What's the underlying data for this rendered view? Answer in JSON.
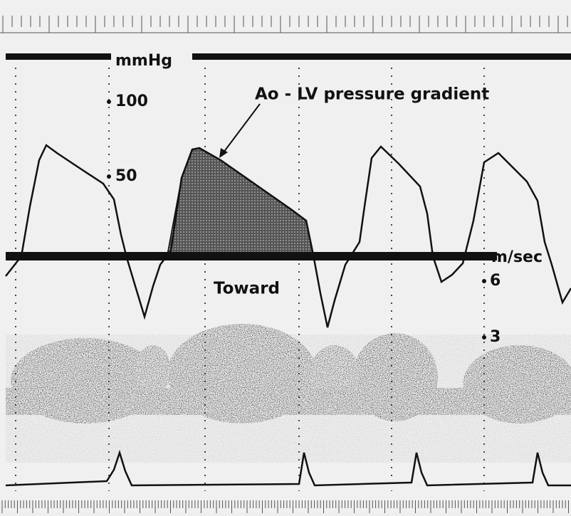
{
  "pressure_scale": {
    "unit": "mmHg",
    "marks": [
      "100",
      "50"
    ]
  },
  "annotation": "Ao - LV pressure gradient",
  "velocity_scale": {
    "unit": "m/sec",
    "marks": [
      "6",
      "3"
    ]
  },
  "direction_label": "Toward"
}
